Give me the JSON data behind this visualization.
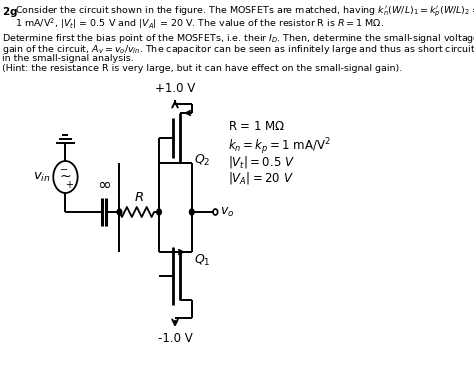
{
  "bg_color": "#ffffff",
  "text_color": "#000000",
  "circuit": {
    "vdd_label": "+1.0 V",
    "vss_label": "-1.0 V",
    "vo_label": "v_o",
    "vin_label": "v_{in}",
    "Q1_label": "Q_1",
    "Q2_label": "Q_2",
    "R_label": "R",
    "inf_label": "\\infty"
  },
  "legend": {
    "R": "R = 1 M\\Omega",
    "kn": "k_n = k_p = 1 mA/V^2",
    "Vt": "|V_t| = 0.5 V",
    "VA": "|V_A| = 20 V"
  }
}
